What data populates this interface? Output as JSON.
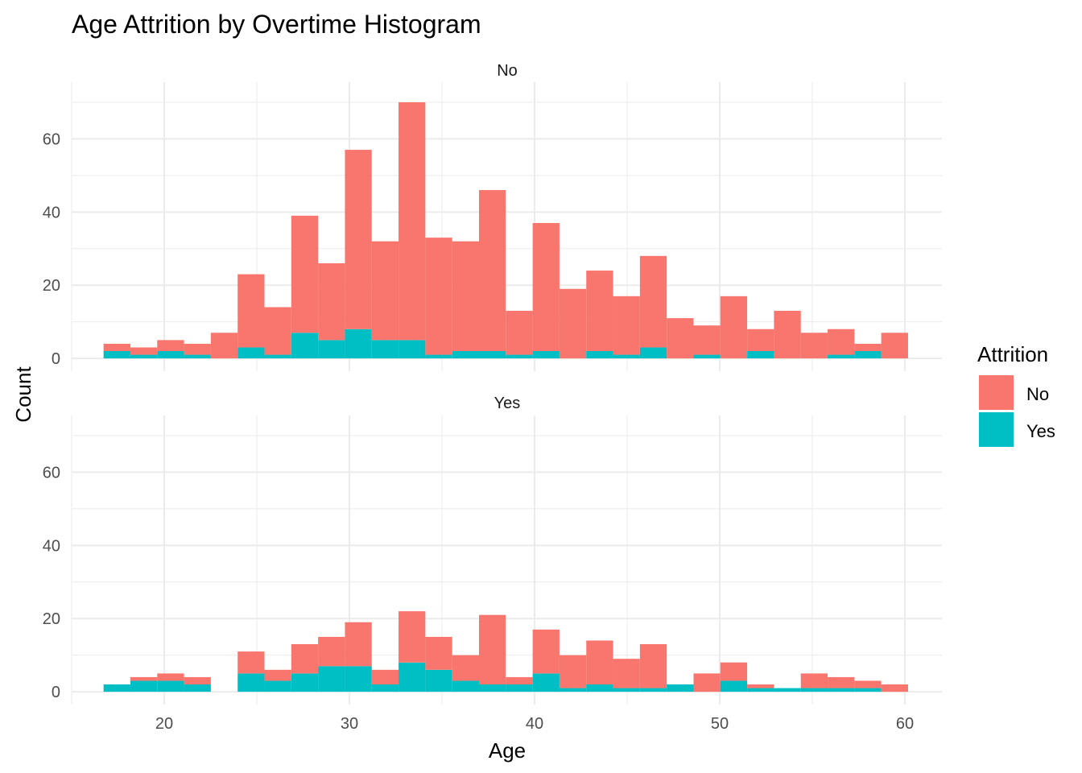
{
  "chart_data": {
    "type": "histogram",
    "title": "Age Attrition by Overtime Histogram",
    "xlabel": "Age",
    "ylabel": "Count",
    "stacked": true,
    "xlim": [
      15,
      62
    ],
    "ylim": [
      0,
      72
    ],
    "x_ticks": [
      20,
      30,
      40,
      50,
      60
    ],
    "y_ticks": [
      0,
      20,
      40,
      60
    ],
    "grid": true,
    "bin_width": 1.448,
    "bin_starts": [
      16.724,
      18.172,
      19.621,
      21.069,
      22.517,
      23.966,
      25.414,
      26.862,
      28.31,
      29.759,
      31.207,
      32.655,
      34.103,
      35.552,
      37.0,
      38.448,
      39.897,
      41.345,
      42.793,
      44.241,
      45.69,
      47.138,
      48.586,
      50.034,
      51.483,
      52.931,
      54.379,
      55.828,
      57.276,
      58.724
    ],
    "legend": {
      "title": "Attrition",
      "position": "right",
      "entries": [
        {
          "label": "No",
          "color": "#F8766D"
        },
        {
          "label": "Yes",
          "color": "#00BFC4"
        }
      ]
    },
    "panels": [
      {
        "strip": "No",
        "series": [
          {
            "name": "No",
            "color": "#F8766D",
            "values": [
              2,
              2,
              3,
              3,
              7,
              20,
              13,
              32,
              21,
              49,
              27,
              65,
              32,
              30,
              44,
              12,
              35,
              19,
              22,
              16,
              25,
              11,
              8,
              17,
              6,
              13,
              7,
              7,
              2,
              7
            ]
          },
          {
            "name": "Yes",
            "color": "#00BFC4",
            "values": [
              2,
              1,
              2,
              1,
              0,
              3,
              1,
              7,
              5,
              8,
              5,
              5,
              1,
              2,
              2,
              1,
              2,
              0,
              2,
              1,
              3,
              0,
              1,
              0,
              2,
              0,
              0,
              1,
              2,
              0
            ]
          }
        ]
      },
      {
        "strip": "Yes",
        "series": [
          {
            "name": "No",
            "color": "#F8766D",
            "values": [
              0,
              1,
              2,
              2,
              0,
              6,
              3,
              8,
              8,
              12,
              4,
              14,
              9,
              7,
              19,
              2,
              12,
              9,
              12,
              8,
              12,
              0,
              5,
              5,
              1,
              0,
              4,
              3,
              2,
              2
            ]
          },
          {
            "name": "Yes",
            "color": "#00BFC4",
            "values": [
              2,
              3,
              3,
              2,
              0,
              5,
              3,
              5,
              7,
              7,
              2,
              8,
              6,
              3,
              2,
              2,
              5,
              1,
              2,
              1,
              1,
              2,
              0,
              3,
              1,
              1,
              1,
              1,
              1,
              0
            ]
          }
        ]
      }
    ]
  }
}
